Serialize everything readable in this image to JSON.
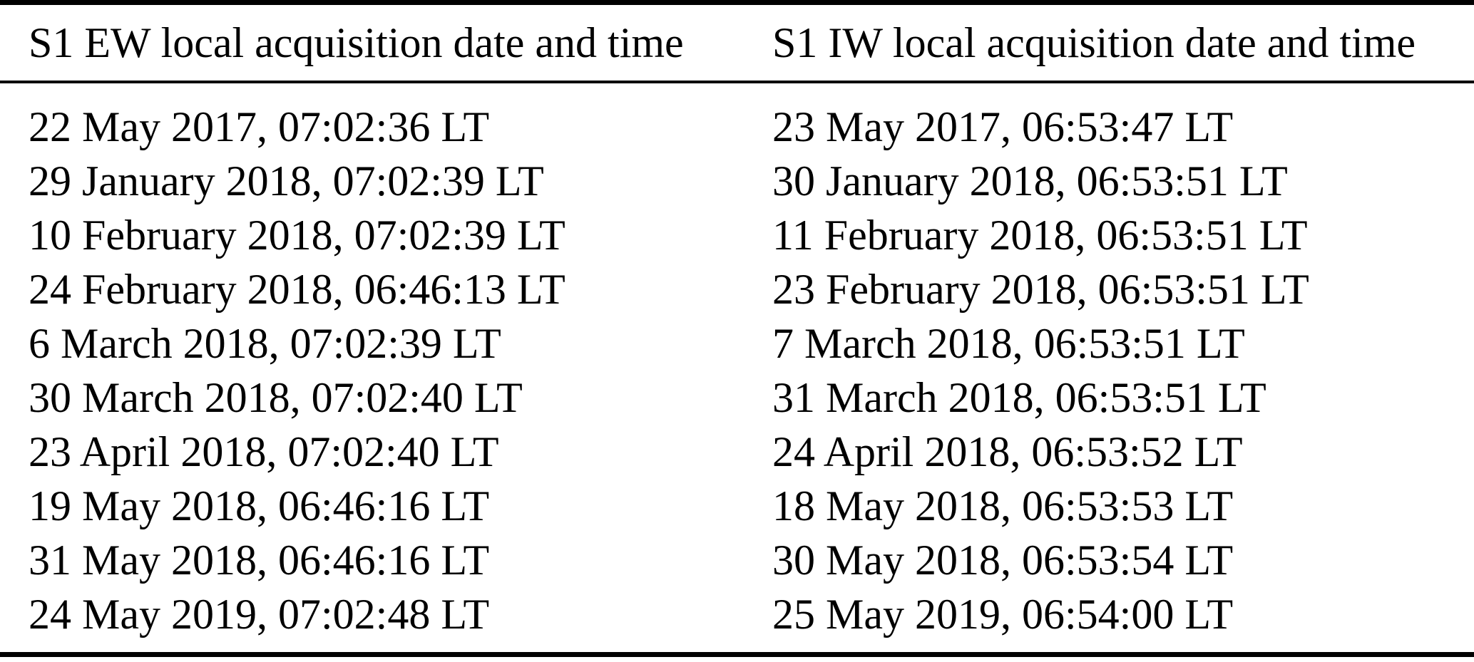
{
  "figure": {
    "background_color": "#ffffff",
    "text_color": "#000000",
    "rule_color": "#000000"
  },
  "table": {
    "headers": {
      "ew": "S1 EW local acquisition date and time",
      "iw": "S1 IW local acquisition date and time"
    },
    "rows": [
      {
        "ew": "22 May 2017, 07:02:36 LT",
        "iw": "23 May 2017, 06:53:47 LT"
      },
      {
        "ew": "29 January 2018, 07:02:39 LT",
        "iw": "30 January 2018, 06:53:51 LT"
      },
      {
        "ew": "10 February 2018, 07:02:39 LT",
        "iw": "11 February 2018, 06:53:51 LT"
      },
      {
        "ew": "24 February 2018, 06:46:13 LT",
        "iw": "23 February 2018, 06:53:51 LT"
      },
      {
        "ew": "6 March 2018, 07:02:39 LT",
        "iw": "7 March 2018, 06:53:51 LT"
      },
      {
        "ew": "30 March 2018, 07:02:40 LT",
        "iw": "31 March 2018, 06:53:51 LT"
      },
      {
        "ew": "23 April 2018, 07:02:40 LT",
        "iw": "24 April 2018, 06:53:52 LT"
      },
      {
        "ew": "19 May 2018, 06:46:16 LT",
        "iw": "18 May 2018, 06:53:53 LT"
      },
      {
        "ew": "31 May 2018, 06:46:16 LT",
        "iw": "30 May 2018, 06:53:54 LT"
      },
      {
        "ew": "24 May 2019, 07:02:48 LT",
        "iw": "25 May 2019, 06:54:00 LT"
      }
    ]
  }
}
